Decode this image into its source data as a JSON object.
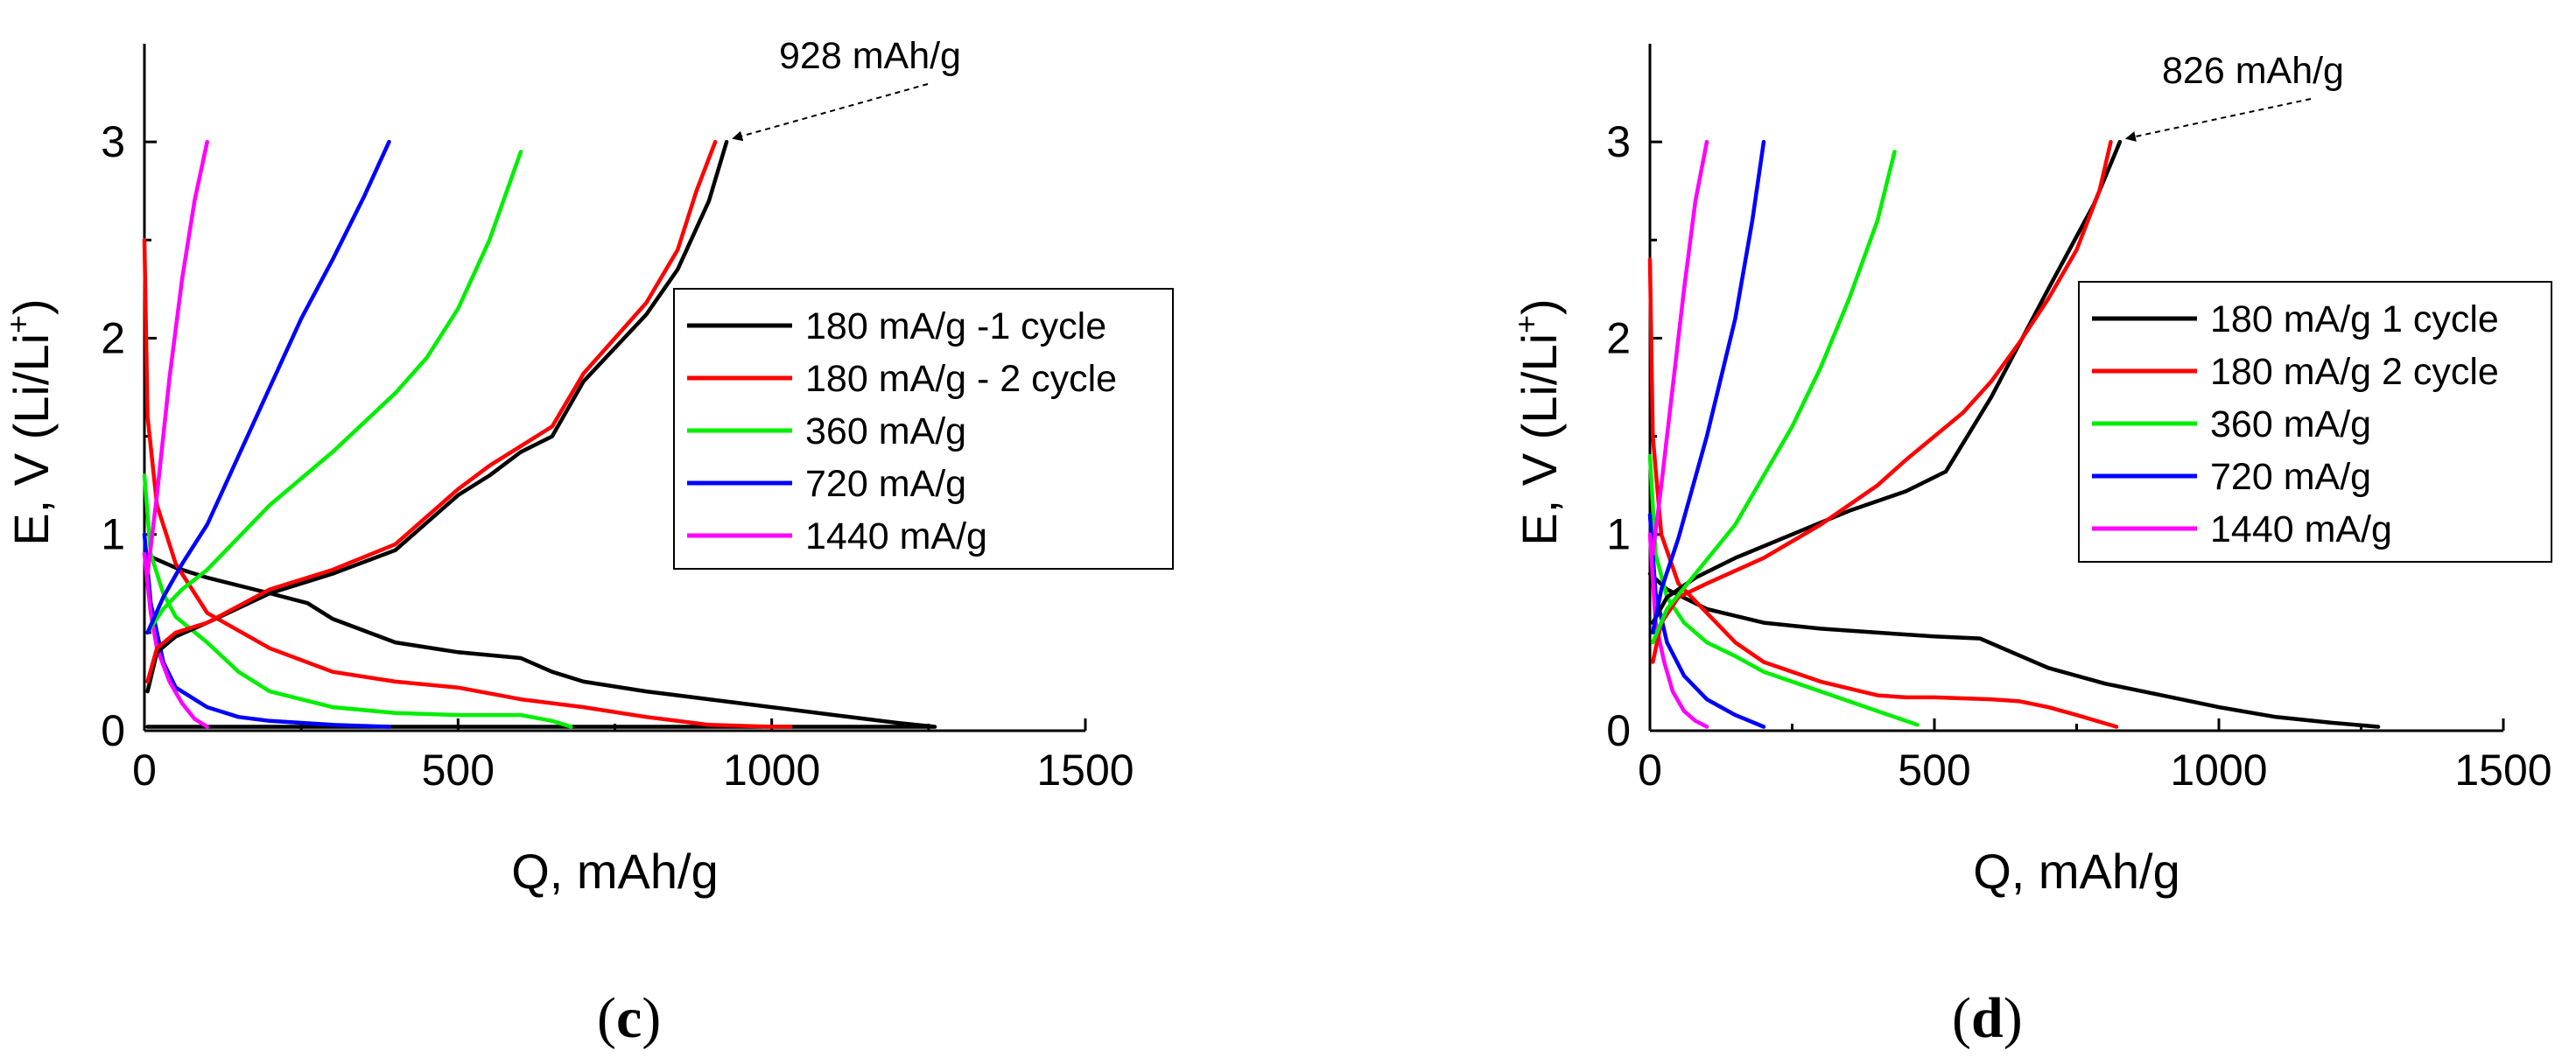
{
  "chart_data": [
    {
      "id": "c",
      "type": "line",
      "panel_label": "c",
      "xlabel": "Q, mAh/g",
      "ylabel": "E, V (Li/Li",
      "ylabel_sup": "+",
      "ylabel_close": ")",
      "xlim": [
        0,
        1500
      ],
      "ylim": [
        0,
        3.5
      ],
      "xticks": [
        0,
        500,
        1000,
        1500
      ],
      "yticks": [
        0,
        1,
        2,
        3
      ],
      "annotation": {
        "text": "928 mAh/g",
        "target": [
          928,
          3.0
        ]
      },
      "series": [
        {
          "name": "180 mA/g -1 cycle",
          "color": "#000000",
          "x": [
            0,
            50,
            100,
            200,
            260,
            300,
            400,
            500,
            600,
            650,
            700,
            800,
            900,
            1000,
            1100,
            1200,
            1260,
            1200,
            1100,
            1000,
            900,
            800,
            700,
            650,
            600,
            500,
            400,
            300,
            200,
            100,
            50,
            20,
            5
          ],
          "y": [
            0.9,
            0.83,
            0.78,
            0.7,
            0.65,
            0.57,
            0.45,
            0.4,
            0.37,
            0.3,
            0.25,
            0.2,
            0.16,
            0.12,
            0.08,
            0.04,
            0.02,
            0.02,
            0.02,
            0.02,
            0.02,
            0.02,
            0.02,
            0.02,
            0.02,
            0.02,
            0.02,
            0.02,
            0.02,
            0.02,
            0.02,
            0.02,
            0.02
          ]
        },
        {
          "name": "180 mA/g - 2 cycle",
          "color": "#ff0000",
          "x": [
            0,
            5,
            20,
            50,
            100,
            200,
            300,
            400,
            500,
            600,
            700,
            800,
            900,
            1000,
            1030
          ],
          "y": [
            2.5,
            1.6,
            1.15,
            0.85,
            0.6,
            0.42,
            0.3,
            0.25,
            0.22,
            0.16,
            0.12,
            0.07,
            0.03,
            0.02,
            0.02
          ]
        },
        {
          "name": "360 mA/g",
          "color": "#00ee00",
          "x": [
            0,
            10,
            30,
            50,
            100,
            150,
            200,
            300,
            400,
            500,
            600,
            650,
            680
          ],
          "y": [
            1.3,
            0.9,
            0.7,
            0.58,
            0.45,
            0.3,
            0.2,
            0.12,
            0.09,
            0.08,
            0.08,
            0.05,
            0.02
          ]
        },
        {
          "name": "720 mA/g",
          "color": "#0000ff",
          "x": [
            0,
            10,
            30,
            50,
            100,
            150,
            200,
            300,
            390
          ],
          "y": [
            1.0,
            0.65,
            0.35,
            0.22,
            0.12,
            0.07,
            0.05,
            0.03,
            0.02
          ]
        },
        {
          "name": "1440 mA/g",
          "color": "#ff00ff",
          "x": [
            0,
            10,
            20,
            40,
            60,
            80,
            100
          ],
          "y": [
            0.9,
            0.6,
            0.42,
            0.25,
            0.14,
            0.06,
            0.02
          ]
        }
      ],
      "charge": [
        {
          "color": "#000000",
          "x": [
            5,
            20,
            50,
            100,
            200,
            300,
            400,
            500,
            550,
            600,
            650,
            700,
            800,
            850,
            900,
            928
          ],
          "y": [
            0.2,
            0.4,
            0.48,
            0.55,
            0.7,
            0.8,
            0.92,
            1.2,
            1.3,
            1.42,
            1.5,
            1.78,
            2.12,
            2.35,
            2.7,
            3.0
          ]
        },
        {
          "color": "#ff0000",
          "x": [
            5,
            20,
            50,
            100,
            200,
            300,
            400,
            500,
            550,
            600,
            650,
            700,
            800,
            850,
            880,
            910
          ],
          "y": [
            0.25,
            0.42,
            0.5,
            0.55,
            0.72,
            0.82,
            0.95,
            1.23,
            1.35,
            1.45,
            1.55,
            1.82,
            2.18,
            2.45,
            2.75,
            3.0
          ]
        },
        {
          "color": "#00ee00",
          "x": [
            5,
            30,
            60,
            100,
            200,
            300,
            400,
            450,
            500,
            550,
            600
          ],
          "y": [
            0.5,
            0.62,
            0.72,
            0.82,
            1.15,
            1.42,
            1.72,
            1.9,
            2.15,
            2.5,
            2.95
          ]
        },
        {
          "color": "#0000ff",
          "x": [
            5,
            30,
            60,
            100,
            150,
            200,
            250,
            300,
            350,
            390
          ],
          "y": [
            0.5,
            0.68,
            0.85,
            1.05,
            1.4,
            1.75,
            2.1,
            2.4,
            2.72,
            3.0
          ]
        },
        {
          "color": "#ff00ff",
          "x": [
            5,
            20,
            40,
            60,
            80,
            100
          ],
          "y": [
            0.8,
            1.2,
            1.8,
            2.3,
            2.7,
            3.0
          ]
        }
      ]
    },
    {
      "id": "d",
      "type": "line",
      "panel_label": "d",
      "xlabel": "Q, mAh/g",
      "ylabel": "E, V (Li/Li",
      "ylabel_sup": "+",
      "ylabel_close": ")",
      "xlim": [
        0,
        1500
      ],
      "ylim": [
        0,
        3.5
      ],
      "xticks": [
        0,
        500,
        1000,
        1500
      ],
      "yticks": [
        0,
        1,
        2,
        3
      ],
      "annotation": {
        "text": "826 mAh/g",
        "target": [
          826,
          3.0
        ]
      },
      "series": [
        {
          "name": "180 mA/g 1 cycle",
          "color": "#000000",
          "x": [
            0,
            30,
            100,
            200,
            300,
            400,
            500,
            580,
            620,
            700,
            800,
            900,
            1000,
            1100,
            1200,
            1280
          ],
          "y": [
            0.8,
            0.72,
            0.62,
            0.55,
            0.52,
            0.5,
            0.48,
            0.47,
            0.42,
            0.32,
            0.24,
            0.18,
            0.12,
            0.07,
            0.04,
            0.02
          ]
        },
        {
          "name": "180 mA/g 2 cycle",
          "color": "#ff0000",
          "x": [
            0,
            5,
            20,
            50,
            100,
            150,
            200,
            300,
            400,
            450,
            500,
            600,
            650,
            700,
            750,
            820
          ],
          "y": [
            2.4,
            1.5,
            1.0,
            0.75,
            0.6,
            0.45,
            0.35,
            0.25,
            0.18,
            0.17,
            0.17,
            0.16,
            0.15,
            0.12,
            0.08,
            0.02
          ]
        },
        {
          "name": "360 mA/g",
          "color": "#00ee00",
          "x": [
            0,
            10,
            30,
            60,
            100,
            150,
            200,
            300,
            400,
            470
          ],
          "y": [
            1.4,
            0.9,
            0.68,
            0.55,
            0.45,
            0.38,
            0.3,
            0.2,
            0.1,
            0.03
          ]
        },
        {
          "name": "720 mA/g",
          "color": "#0000ff",
          "x": [
            0,
            10,
            30,
            60,
            100,
            150,
            200
          ],
          "y": [
            1.1,
            0.7,
            0.45,
            0.28,
            0.16,
            0.08,
            0.02
          ]
        },
        {
          "name": "1440 mA/g",
          "color": "#ff00ff",
          "x": [
            0,
            10,
            25,
            40,
            60,
            80,
            100
          ],
          "y": [
            1.0,
            0.55,
            0.35,
            0.2,
            0.1,
            0.05,
            0.02
          ]
        }
      ],
      "charge": [
        {
          "color": "#000000",
          "x": [
            5,
            30,
            80,
            150,
            250,
            350,
            450,
            520,
            600,
            700,
            780,
            826
          ],
          "y": [
            0.55,
            0.68,
            0.78,
            0.88,
            1.0,
            1.12,
            1.22,
            1.32,
            1.7,
            2.25,
            2.68,
            3.0
          ]
        },
        {
          "color": "#ff0000",
          "x": [
            5,
            20,
            50,
            100,
            200,
            300,
            400,
            450,
            500,
            550,
            600,
            650,
            700,
            750,
            790,
            810
          ],
          "y": [
            0.35,
            0.55,
            0.68,
            0.75,
            0.88,
            1.05,
            1.25,
            1.38,
            1.5,
            1.62,
            1.78,
            1.98,
            2.2,
            2.45,
            2.75,
            3.0
          ]
        },
        {
          "color": "#00ee00",
          "x": [
            5,
            30,
            80,
            150,
            250,
            300,
            350,
            400,
            430
          ],
          "y": [
            0.45,
            0.62,
            0.8,
            1.05,
            1.55,
            1.85,
            2.2,
            2.6,
            2.95
          ]
        },
        {
          "color": "#0000ff",
          "x": [
            5,
            20,
            50,
            100,
            150,
            180,
            200
          ],
          "y": [
            0.5,
            0.72,
            0.98,
            1.5,
            2.1,
            2.6,
            3.0
          ]
        },
        {
          "color": "#ff00ff",
          "x": [
            5,
            20,
            40,
            60,
            80,
            100
          ],
          "y": [
            0.9,
            1.25,
            1.75,
            2.25,
            2.7,
            3.0
          ]
        }
      ]
    }
  ]
}
